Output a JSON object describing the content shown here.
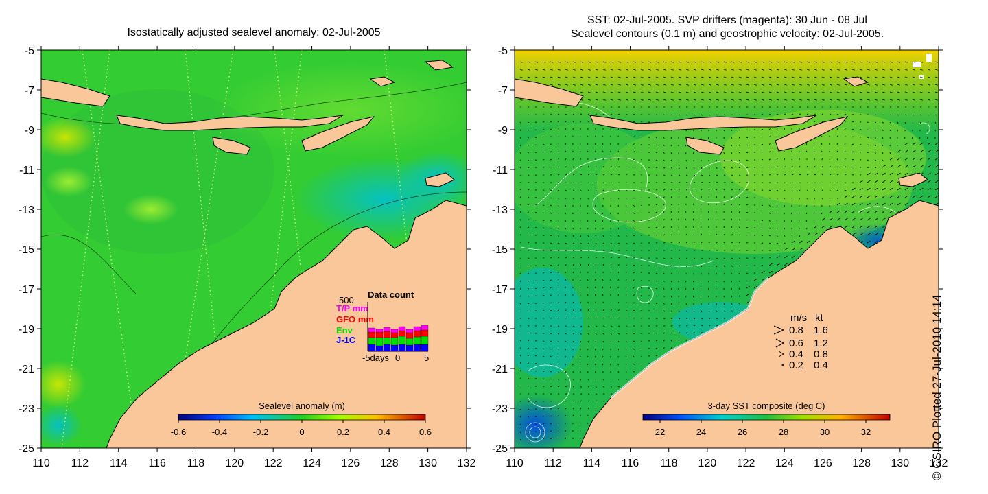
{
  "left_panel": {
    "title": "Isostatically adjusted sealevel anomaly: 02-Jul-2005",
    "colorbar": {
      "label": "Sealevel anomaly (m)",
      "ticks": [
        "-0.6",
        "-0.4",
        "-0.2",
        "0",
        "0.2",
        "0.4",
        "0.6"
      ]
    },
    "inset": {
      "title": "Data count",
      "max_label": "500",
      "legend": [
        {
          "label": "T/P mm",
          "color": "#ff00ff"
        },
        {
          "label": "GFO mm",
          "color": "#ff0000"
        },
        {
          "label": "Env",
          "color": "#00dd00"
        },
        {
          "label": "J-1C",
          "color": "#0000ff"
        }
      ],
      "x_labels": [
        "-5days",
        "0",
        "5"
      ]
    }
  },
  "right_panel": {
    "title_line1": "SST: 02-Jul-2005. SVP drifters (magenta): 30 Jun - 08 Jul",
    "title_line2": "Sealevel contours (0.1 m) and geostrophic velocity: 02-Jul-2005.",
    "colorbar": {
      "label": "3-day SST composite (deg C)",
      "ticks": [
        "22",
        "24",
        "26",
        "28",
        "30",
        "32"
      ]
    },
    "velocity_key": {
      "header_ms": "m/s",
      "header_kt": "kt",
      "rows": [
        {
          "ms": "0.8",
          "kt": "1.6"
        },
        {
          "ms": "0.6",
          "kt": "1.2"
        },
        {
          "ms": "0.4",
          "kt": "0.8"
        },
        {
          "ms": "0.2",
          "kt": "0.4"
        }
      ]
    }
  },
  "axes": {
    "lat_ticks": [
      "-5",
      "-7",
      "-9",
      "-11",
      "-13",
      "-15",
      "-17",
      "-19",
      "-21",
      "-23",
      "-25"
    ],
    "lon_ticks": [
      "110",
      "112",
      "114",
      "116",
      "118",
      "120",
      "122",
      "124",
      "126",
      "128",
      "130",
      "132"
    ]
  },
  "credit": "© CSIRO Plotted 27-Jul-2010 14:14",
  "colors": {
    "land": "#fac79a",
    "sla_ocean": "#33cc33",
    "sst_ocean": "#22b84a",
    "contour_white": "#ffffff"
  }
}
